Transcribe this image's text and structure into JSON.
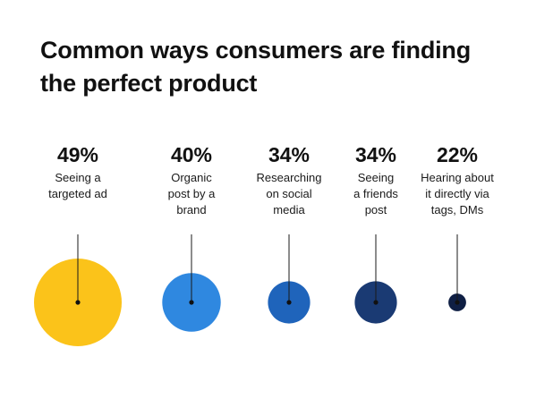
{
  "title_lines": [
    "Common ways consumers are finding",
    "the perfect product"
  ],
  "chart_data": {
    "type": "bubble",
    "title": "Common ways consumers are finding the perfect product",
    "categories": [
      "Seeing a targeted ad",
      "Organic post by a brand",
      "Researching on social media",
      "Seeing a friends post",
      "Hearing about it directly via tags, DMs"
    ],
    "values": [
      49,
      40,
      34,
      34,
      22
    ],
    "value_labels": [
      "49%",
      "40%",
      "34%",
      "34%",
      "22%"
    ],
    "label_lines": [
      [
        "Seeing a",
        "targeted ad"
      ],
      [
        "Organic",
        "post by a",
        "brand"
      ],
      [
        "Researching",
        "on social",
        "media"
      ],
      [
        "Seeing",
        "a friends",
        "post"
      ],
      [
        "Hearing about",
        "it directly via",
        "tags, DMs"
      ]
    ],
    "colors": [
      "#FBC31A",
      "#2F88E0",
      "#1F64BB",
      "#1A3A73",
      "#0F1F44"
    ],
    "xlabel": "",
    "ylabel": ""
  }
}
